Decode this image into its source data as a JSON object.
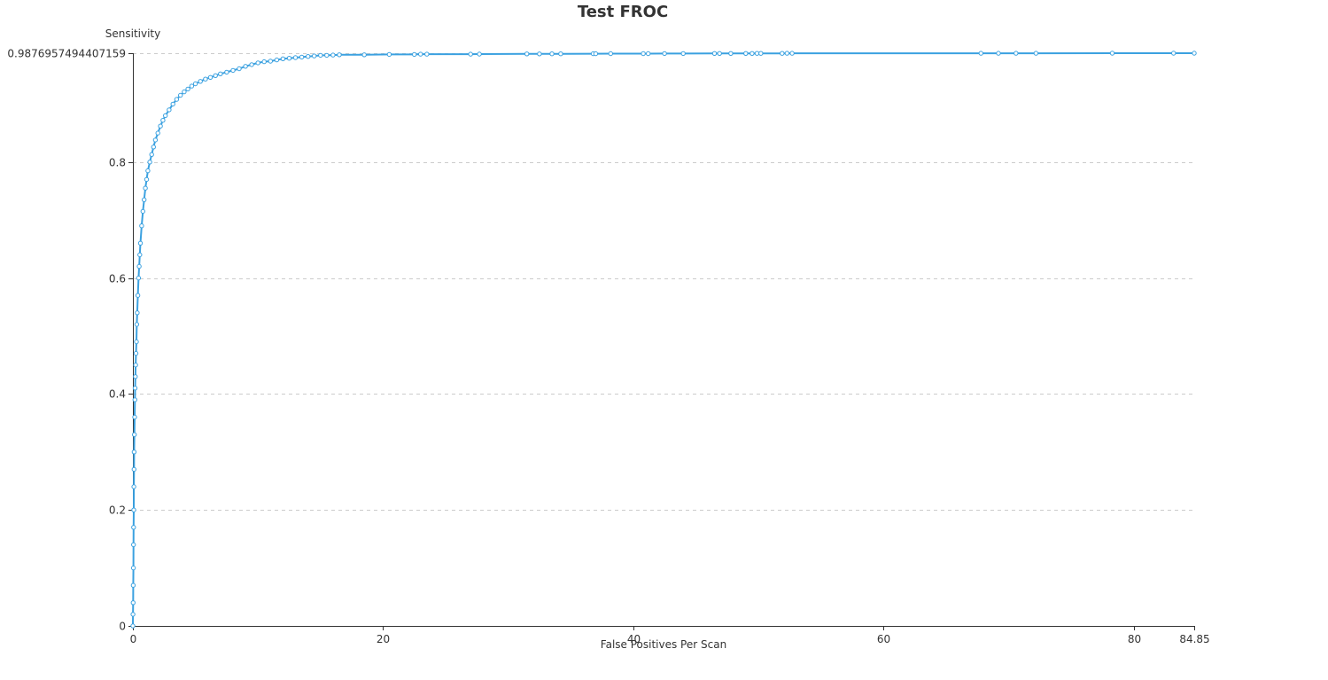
{
  "colors": {
    "series": "#3ba1e0",
    "axis": "#333333",
    "grid": "#cccccc",
    "text": "#333333"
  },
  "chart_data": {
    "type": "line",
    "title": "Test FROC",
    "xlabel": "False Positives Per Scan",
    "ylabel": "Sensitivity",
    "xlim": [
      0,
      84.85
    ],
    "ylim": [
      0,
      0.9876957494407159
    ],
    "grid": true,
    "x_ticks": [
      {
        "value": 0,
        "label": "0"
      },
      {
        "value": 20,
        "label": "20"
      },
      {
        "value": 40,
        "label": "40"
      },
      {
        "value": 60,
        "label": "60"
      },
      {
        "value": 80,
        "label": "80"
      },
      {
        "value": 84.85,
        "label": "84.85"
      }
    ],
    "y_ticks": [
      {
        "value": 0,
        "label": "0"
      },
      {
        "value": 0.2,
        "label": "0.2"
      },
      {
        "value": 0.4,
        "label": "0.4"
      },
      {
        "value": 0.6,
        "label": "0.6"
      },
      {
        "value": 0.8,
        "label": "0.8"
      },
      {
        "value": 0.9876957494407159,
        "label": "0.9876957494407159"
      }
    ],
    "series": [
      {
        "name": "Sensitivity",
        "x": [
          0,
          0.01,
          0.02,
          0.03,
          0.04,
          0.05,
          0.06,
          0.07,
          0.08,
          0.09,
          0.1,
          0.12,
          0.14,
          0.16,
          0.18,
          0.2,
          0.22,
          0.25,
          0.28,
          0.31,
          0.35,
          0.4,
          0.45,
          0.5,
          0.55,
          0.6,
          0.7,
          0.8,
          0.9,
          1.0,
          1.1,
          1.2,
          1.35,
          1.5,
          1.65,
          1.8,
          2.0,
          2.2,
          2.4,
          2.6,
          2.9,
          3.2,
          3.5,
          3.8,
          4.1,
          4.4,
          4.7,
          5.0,
          5.4,
          5.8,
          6.2,
          6.6,
          7.0,
          7.5,
          8.0,
          8.5,
          9.0,
          9.5,
          10.0,
          10.5,
          11.0,
          11.5,
          12.0,
          12.5,
          13.0,
          13.5,
          14.0,
          14.5,
          15.0,
          15.5,
          16.0,
          16.5,
          18.5,
          20.5,
          22.5,
          23.0,
          23.5,
          27.0,
          27.7,
          31.5,
          32.5,
          33.5,
          34.2,
          36.8,
          37.0,
          38.2,
          40.8,
          41.2,
          42.5,
          44.0,
          46.5,
          46.9,
          47.8,
          49.0,
          49.5,
          49.9,
          50.2,
          51.9,
          52.3,
          52.7,
          67.8,
          69.2,
          70.6,
          72.2,
          78.3,
          83.2,
          84.85
        ],
        "y": [
          0,
          0.02,
          0.04,
          0.07,
          0.1,
          0.14,
          0.17,
          0.2,
          0.24,
          0.27,
          0.3,
          0.33,
          0.36,
          0.39,
          0.41,
          0.43,
          0.45,
          0.47,
          0.49,
          0.52,
          0.54,
          0.57,
          0.6,
          0.62,
          0.64,
          0.66,
          0.69,
          0.715,
          0.735,
          0.755,
          0.77,
          0.785,
          0.8,
          0.813,
          0.826,
          0.838,
          0.85,
          0.862,
          0.872,
          0.88,
          0.89,
          0.9,
          0.908,
          0.915,
          0.921,
          0.926,
          0.931,
          0.935,
          0.939,
          0.943,
          0.946,
          0.949,
          0.952,
          0.955,
          0.958,
          0.961,
          0.965,
          0.968,
          0.971,
          0.973,
          0.974,
          0.976,
          0.978,
          0.979,
          0.98,
          0.981,
          0.982,
          0.983,
          0.984,
          0.984,
          0.9845,
          0.985,
          0.985,
          0.9855,
          0.9855,
          0.986,
          0.986,
          0.986,
          0.9862,
          0.9864,
          0.9865,
          0.9866,
          0.9866,
          0.9868,
          0.9868,
          0.987,
          0.987,
          0.987,
          0.9871,
          0.9871,
          0.9872,
          0.9872,
          0.9873,
          0.9873,
          0.9873,
          0.9874,
          0.9874,
          0.9874,
          0.9875,
          0.9875,
          0.9876,
          0.9876,
          0.9876,
          0.9876,
          0.9877,
          0.9877,
          0.9877
        ]
      }
    ]
  }
}
